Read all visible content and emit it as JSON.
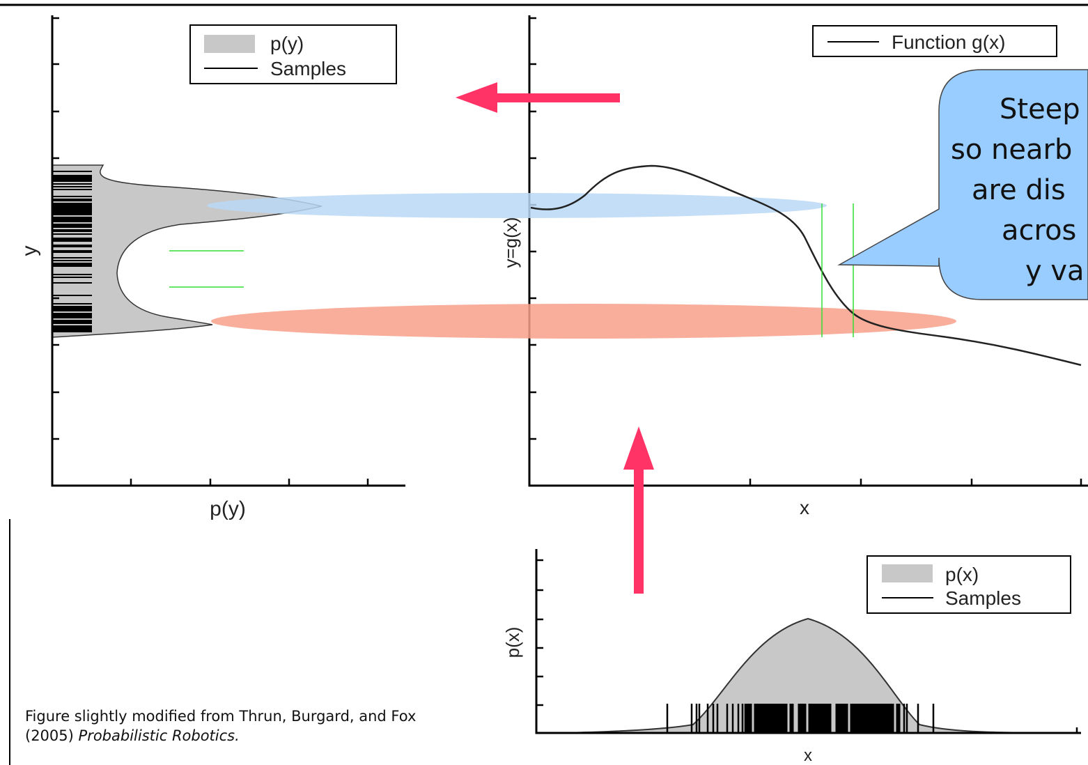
{
  "panels": {
    "py": {
      "xlabel": "p(y)",
      "ylabel": "y",
      "legend": [
        "p(y)",
        "Samples"
      ]
    },
    "gx": {
      "xlabel": "x",
      "ylabel": "y=g(x)",
      "legend": [
        "Function g(x)"
      ]
    },
    "px": {
      "xlabel": "x",
      "ylabel": "p(x)",
      "legend": [
        "p(x)",
        "Samples"
      ]
    }
  },
  "callout": {
    "lines": [
      "Steep",
      "so nearb",
      "are dis",
      "acros",
      "y va"
    ],
    "color": "#99ccff"
  },
  "highlights": {
    "blue": "#b8d8f5",
    "red": "#f7a08a"
  },
  "arrows": {
    "color": "#ff3366",
    "directions": [
      "left",
      "up"
    ]
  },
  "caption": {
    "text": "Figure slightly modified from Thrun, Burgard, and Fox",
    "year": "(2005)",
    "book": "Probabilistic Robotics."
  }
}
